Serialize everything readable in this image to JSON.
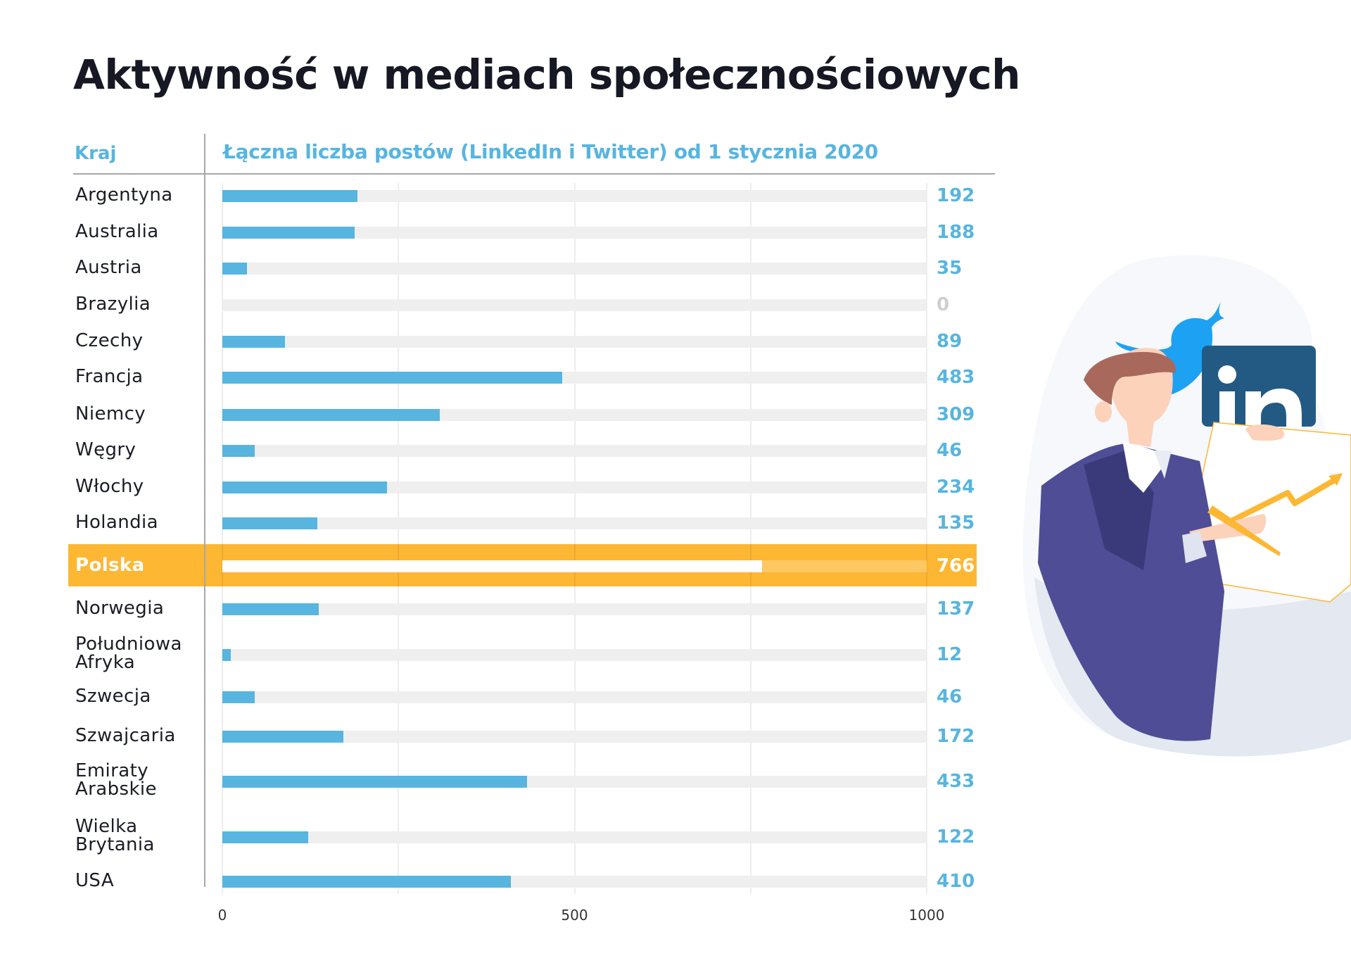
{
  "title": "Aktywność w mediach społecznościowych",
  "header": {
    "country_col": "Kraj",
    "metric_col": "Łączna liczba postów (LinkedIn i Twitter) od 1 stycznia 2020"
  },
  "colors": {
    "bar": "#57b5df",
    "track": "#efefef",
    "highlight": "#fdb733",
    "title": "#161823",
    "twitter": "#1da1f2",
    "linkedin": "#235a84"
  },
  "illustration": {
    "icons": [
      "twitter-bird-icon",
      "linkedin-icon"
    ],
    "description": "Man in suit holding chart with rising arrow"
  },
  "chart_data": {
    "type": "bar",
    "orientation": "horizontal",
    "title": "Aktywność w mediach społecznościowych",
    "xlabel": "Łączna liczba postów (LinkedIn i Twitter) od 1 stycznia 2020",
    "ylabel": "Kraj",
    "xlim": [
      0,
      1000
    ],
    "xticks": [
      "0",
      "500",
      "1000"
    ],
    "xtick_values": [
      0,
      500,
      1000
    ],
    "grid": true,
    "highlighted_category": "Polska",
    "categories": [
      "Argentyna",
      "Australia",
      "Austria",
      "Brazylia",
      "Czechy",
      "Francja",
      "Niemcy",
      "Węgry",
      "Włochy",
      "Holandia",
      "Polska",
      "Norwegia",
      "Południowa Afryka",
      "Szwecja",
      "Szwajcaria",
      "Emiraty Arabskie",
      "Wielka Brytania",
      "USA"
    ],
    "label_lines": [
      [
        "Argentyna"
      ],
      [
        "Australia"
      ],
      [
        "Austria"
      ],
      [
        "Brazylia"
      ],
      [
        "Czechy"
      ],
      [
        "Francja"
      ],
      [
        "Niemcy"
      ],
      [
        "Węgry"
      ],
      [
        "Włochy"
      ],
      [
        "Holandia"
      ],
      [
        "Polska"
      ],
      [
        "Norwegia"
      ],
      [
        "Południowa",
        "Afryka"
      ],
      [
        "Szwecja"
      ],
      [
        "Szwajcaria"
      ],
      [
        "Emiraty",
        "Arabskie"
      ],
      [
        "Wielka",
        "Brytania"
      ],
      [
        "USA"
      ]
    ],
    "values": [
      192,
      188,
      35,
      0,
      89,
      483,
      309,
      46,
      234,
      135,
      766,
      137,
      12,
      46,
      172,
      433,
      122,
      410
    ]
  }
}
